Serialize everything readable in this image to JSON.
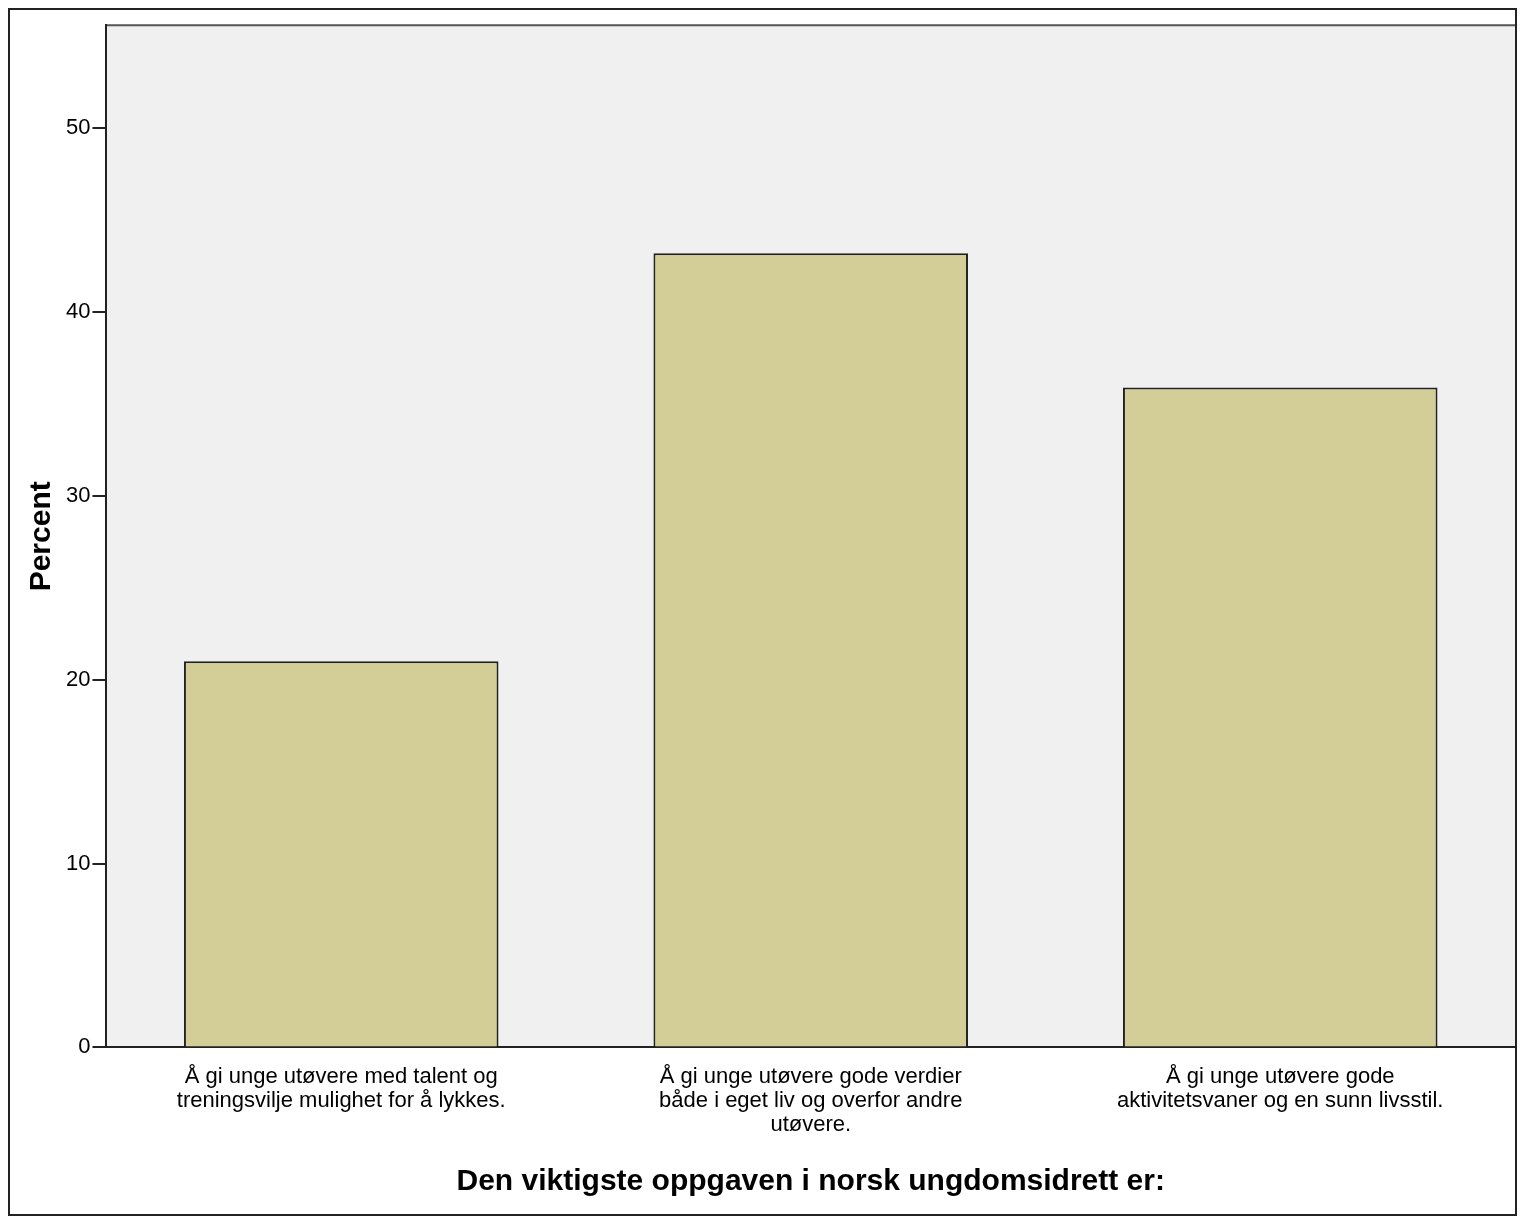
{
  "chart_data": {
    "type": "bar",
    "xlabel": "Den viktigste oppgaven i norsk ungdomsidrett er:",
    "ylabel": "Percent",
    "categories": [
      "Å gi unge utøvere med talent og\ntreningsvilje mulighet for å lykkes.",
      "Å gi unge utøvere gode verdier\nbåde i eget liv og overfor andre\nutøvere.",
      "Å gi unge utøvere gode\naktivitetsvaner og en sunn livsstil."
    ],
    "values": [
      21.0,
      43.2,
      35.9
    ],
    "color": "#d3ce97",
    "ylim": [
      0,
      55.6
    ],
    "yticks": [
      0,
      10,
      20,
      30,
      40,
      50
    ],
    "grid": false,
    "legend": false
  }
}
